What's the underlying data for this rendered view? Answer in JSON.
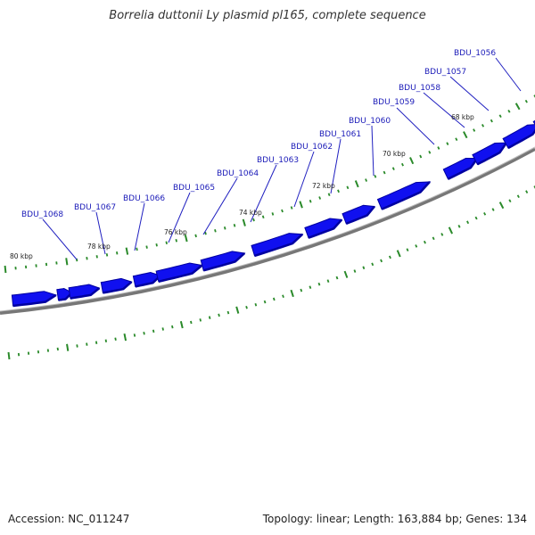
{
  "title": "Borrelia duttonii Ly plasmid pl165, complete sequence",
  "footer": {
    "accession": "Accession: NC_011247",
    "summary": "Topology: linear; Length: 163,884 bp; Genes: 134"
  },
  "colors": {
    "gene": "#1010f0",
    "gene_dark": "#0000a0",
    "tick": "#2a8a2a",
    "backbone": "#777777",
    "label_line": "#2020c0",
    "label_text": "#1a1ab8"
  },
  "kbp_labels": [
    "80 kbp",
    "78 kbp",
    "76 kbp",
    "74 kbp",
    "72 kbp",
    "70 kbp",
    "68 kbp"
  ],
  "gene_labels": [
    "BDU_1068",
    "BDU_1067",
    "BDU_1066",
    "BDU_1065",
    "BDU_1064",
    "BDU_1063",
    "BDU_1062",
    "BDU_1061",
    "BDU_1060",
    "BDU_1059",
    "BDU_1058",
    "BDU_1057",
    "BDU_1056"
  ]
}
